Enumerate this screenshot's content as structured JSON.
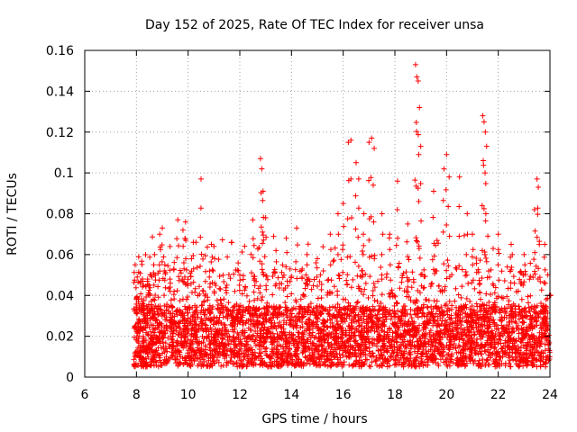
{
  "chart_data": {
    "type": "scatter",
    "title": "Day 152 of 2025, Rate Of TEC Index for receiver unsa",
    "xlabel": "GPS time / hours",
    "ylabel": "ROTI / TECUs",
    "xlim": [
      6,
      24
    ],
    "ylim": [
      0,
      0.16
    ],
    "xticks": [
      6,
      8,
      10,
      12,
      14,
      16,
      18,
      20,
      22,
      24
    ],
    "xtick_labels": [
      "6",
      "8",
      "10",
      "12",
      "14",
      "16",
      "18",
      "20",
      "22",
      "24"
    ],
    "yticks": [
      0,
      0.02,
      0.04,
      0.06,
      0.08,
      0.1,
      0.12,
      0.14,
      0.16
    ],
    "ytick_labels": [
      "0",
      "0.02",
      "0.04",
      "0.06",
      "0.08",
      "0.1",
      "0.12",
      "0.14",
      "0.16"
    ],
    "grid": true,
    "marker": "+",
    "marker_color": "#ff0000",
    "x_range_of_points": [
      7.9,
      24.0
    ],
    "typical_band": [
      0.005,
      0.045
    ],
    "series": [
      {
        "name": "ROTI",
        "points": [
          [
            7.95,
            0.055
          ],
          [
            8.0,
            0.038
          ],
          [
            8.1,
            0.012
          ],
          [
            8.3,
            0.03
          ],
          [
            8.5,
            0.045
          ],
          [
            8.7,
            0.06
          ],
          [
            8.9,
            0.07
          ],
          [
            9.0,
            0.073
          ],
          [
            9.1,
            0.055
          ],
          [
            9.3,
            0.048
          ],
          [
            9.6,
            0.077
          ],
          [
            9.8,
            0.072
          ],
          [
            9.9,
            0.076
          ],
          [
            10.2,
            0.066
          ],
          [
            10.5,
            0.097
          ],
          [
            10.9,
            0.065
          ],
          [
            11.0,
            0.064
          ],
          [
            11.5,
            0.045
          ],
          [
            12.0,
            0.05
          ],
          [
            12.5,
            0.077
          ],
          [
            12.8,
            0.107
          ],
          [
            12.85,
            0.102
          ],
          [
            12.9,
            0.091
          ],
          [
            13.0,
            0.078
          ],
          [
            13.4,
            0.062
          ],
          [
            13.8,
            0.068
          ],
          [
            14.2,
            0.073
          ],
          [
            14.6,
            0.06
          ],
          [
            15.0,
            0.058
          ],
          [
            15.5,
            0.07
          ],
          [
            15.8,
            0.08
          ],
          [
            16.0,
            0.085
          ],
          [
            16.2,
            0.115
          ],
          [
            16.3,
            0.116
          ],
          [
            16.5,
            0.105
          ],
          [
            16.6,
            0.097
          ],
          [
            16.8,
            0.08
          ],
          [
            17.0,
            0.115
          ],
          [
            17.1,
            0.117
          ],
          [
            17.2,
            0.112
          ],
          [
            17.5,
            0.08
          ],
          [
            17.8,
            0.07
          ],
          [
            18.1,
            0.096
          ],
          [
            18.5,
            0.075
          ],
          [
            18.8,
            0.153
          ],
          [
            18.85,
            0.147
          ],
          [
            18.9,
            0.145
          ],
          [
            18.95,
            0.132
          ],
          [
            19.0,
            0.113
          ],
          [
            19.5,
            0.091
          ],
          [
            19.9,
            0.102
          ],
          [
            20.0,
            0.109
          ],
          [
            20.1,
            0.098
          ],
          [
            20.5,
            0.098
          ],
          [
            20.8,
            0.08
          ],
          [
            21.0,
            0.07
          ],
          [
            21.4,
            0.128
          ],
          [
            21.45,
            0.125
          ],
          [
            21.5,
            0.12
          ],
          [
            21.55,
            0.113
          ],
          [
            22.0,
            0.07
          ],
          [
            22.5,
            0.065
          ],
          [
            23.0,
            0.06
          ],
          [
            23.4,
            0.082
          ],
          [
            23.5,
            0.097
          ],
          [
            23.55,
            0.093
          ],
          [
            23.8,
            0.065
          ],
          [
            24.0,
            0.04
          ]
        ]
      }
    ]
  }
}
